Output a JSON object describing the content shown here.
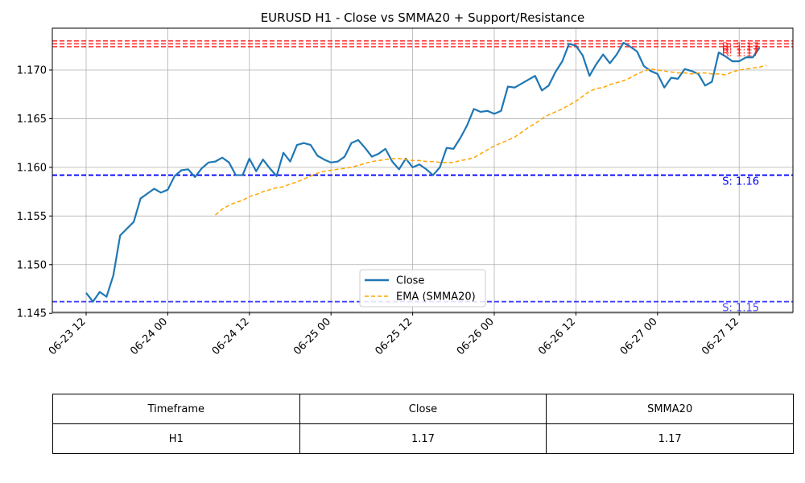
{
  "chart_data": {
    "type": "line",
    "title": "EURUSD H1 - Close vs SMMA20 + Support/Resistance",
    "xlabel": "",
    "ylabel": "",
    "x_ticks": [
      "06-23 12",
      "06-24 00",
      "06-24 12",
      "06-25 00",
      "06-25 12",
      "06-26 00",
      "06-26 12",
      "06-27 00",
      "06-27 12"
    ],
    "y_ticks": [
      "1.145",
      "1.150",
      "1.155",
      "1.160",
      "1.165",
      "1.170"
    ],
    "ylim": [
      1.1451,
      1.1743
    ],
    "x_start": "06-23 12:00",
    "x_step": "1 hour",
    "grid": true,
    "legend": {
      "position": "bottom-center",
      "entries": [
        "Close",
        "EMA (SMMA20)"
      ]
    },
    "colors": {
      "close": "#1f77b4",
      "smma": "#ffa500",
      "resistance": "#ff0000",
      "support": "#0000ff"
    },
    "series": [
      {
        "name": "Close",
        "start_index": 0,
        "values": [
          1.1471,
          1.1462,
          1.1472,
          1.1467,
          1.1489,
          1.153,
          1.1537,
          1.1544,
          1.1568,
          1.1573,
          1.1578,
          1.1574,
          1.1577,
          1.1591,
          1.1597,
          1.1598,
          1.159,
          1.1599,
          1.1605,
          1.1606,
          1.161,
          1.1605,
          1.1592,
          1.1592,
          1.1609,
          1.1596,
          1.1608,
          1.1599,
          1.1591,
          1.1615,
          1.1606,
          1.1623,
          1.1625,
          1.1623,
          1.1612,
          1.1608,
          1.1605,
          1.1606,
          1.1611,
          1.1625,
          1.1628,
          1.162,
          1.1611,
          1.1614,
          1.1619,
          1.1606,
          1.1598,
          1.1609,
          1.16,
          1.1603,
          1.1598,
          1.1592,
          1.16,
          1.162,
          1.1619,
          1.163,
          1.1643,
          1.166,
          1.1657,
          1.1658,
          1.1655,
          1.1658,
          1.1683,
          1.1682,
          1.1686,
          1.169,
          1.1694,
          1.1679,
          1.1684,
          1.1698,
          1.1709,
          1.1727,
          1.1725,
          1.1715,
          1.1694,
          1.1706,
          1.1716,
          1.1707,
          1.1716,
          1.1728,
          1.1724,
          1.1719,
          1.1704,
          1.1699,
          1.1696,
          1.1682,
          1.1692,
          1.1691,
          1.1701,
          1.1699,
          1.1696,
          1.1684,
          1.1688,
          1.1718,
          1.1714,
          1.1709,
          1.1709,
          1.1713,
          1.1713,
          1.1723
        ]
      },
      {
        "name": "EMA (SMMA20)",
        "start_index": 19,
        "values": [
          1.1551,
          1.1557,
          1.1561,
          1.1564,
          1.1566,
          1.157,
          1.1572,
          1.1575,
          1.1577,
          1.1579,
          1.158,
          1.1583,
          1.1585,
          1.1588,
          1.1591,
          1.1594,
          1.1596,
          1.1597,
          1.1598,
          1.1599,
          1.16,
          1.1602,
          1.1604,
          1.1606,
          1.1607,
          1.1608,
          1.1609,
          1.1609,
          1.1608,
          1.1607,
          1.1607,
          1.1606,
          1.1606,
          1.1605,
          1.1605,
          1.1605,
          1.1607,
          1.1608,
          1.161,
          1.1614,
          1.1618,
          1.1622,
          1.1625,
          1.1628,
          1.1631,
          1.1636,
          1.1641,
          1.1645,
          1.165,
          1.1654,
          1.1657,
          1.166,
          1.1664,
          1.1668,
          1.1673,
          1.1678,
          1.1681,
          1.1682,
          1.1685,
          1.1687,
          1.1689,
          1.1692,
          1.1696,
          1.1699,
          1.1701,
          1.17,
          1.1699,
          1.1698,
          1.1697,
          1.1697,
          1.1696,
          1.1697,
          1.1697,
          1.1696,
          1.1696,
          1.1695,
          1.1698,
          1.17,
          1.1701,
          1.1702,
          1.1703,
          1.1705
        ]
      }
    ],
    "levels": [
      {
        "kind": "resistance",
        "value": 1.173,
        "label": "R: 1.17",
        "style": "dashed",
        "opacity": 0.75
      },
      {
        "kind": "resistance",
        "value": 1.1727,
        "label": "R: 1.17",
        "style": "dashed",
        "opacity": 0.75
      },
      {
        "kind": "resistance",
        "value": 1.1724,
        "label": "R: 1.17",
        "style": "dashed",
        "opacity": 0.75
      },
      {
        "kind": "support",
        "value": 1.1592,
        "label": "S: 1.16",
        "style": "dashed",
        "opacity": 1.0
      },
      {
        "kind": "support",
        "value": 1.1462,
        "label": "S: 1.15",
        "style": "dashed",
        "opacity": 0.75
      }
    ]
  },
  "table": {
    "headers": [
      "Timeframe",
      "Close",
      "SMMA20"
    ],
    "row": [
      "H1",
      "1.17",
      "1.17"
    ]
  }
}
